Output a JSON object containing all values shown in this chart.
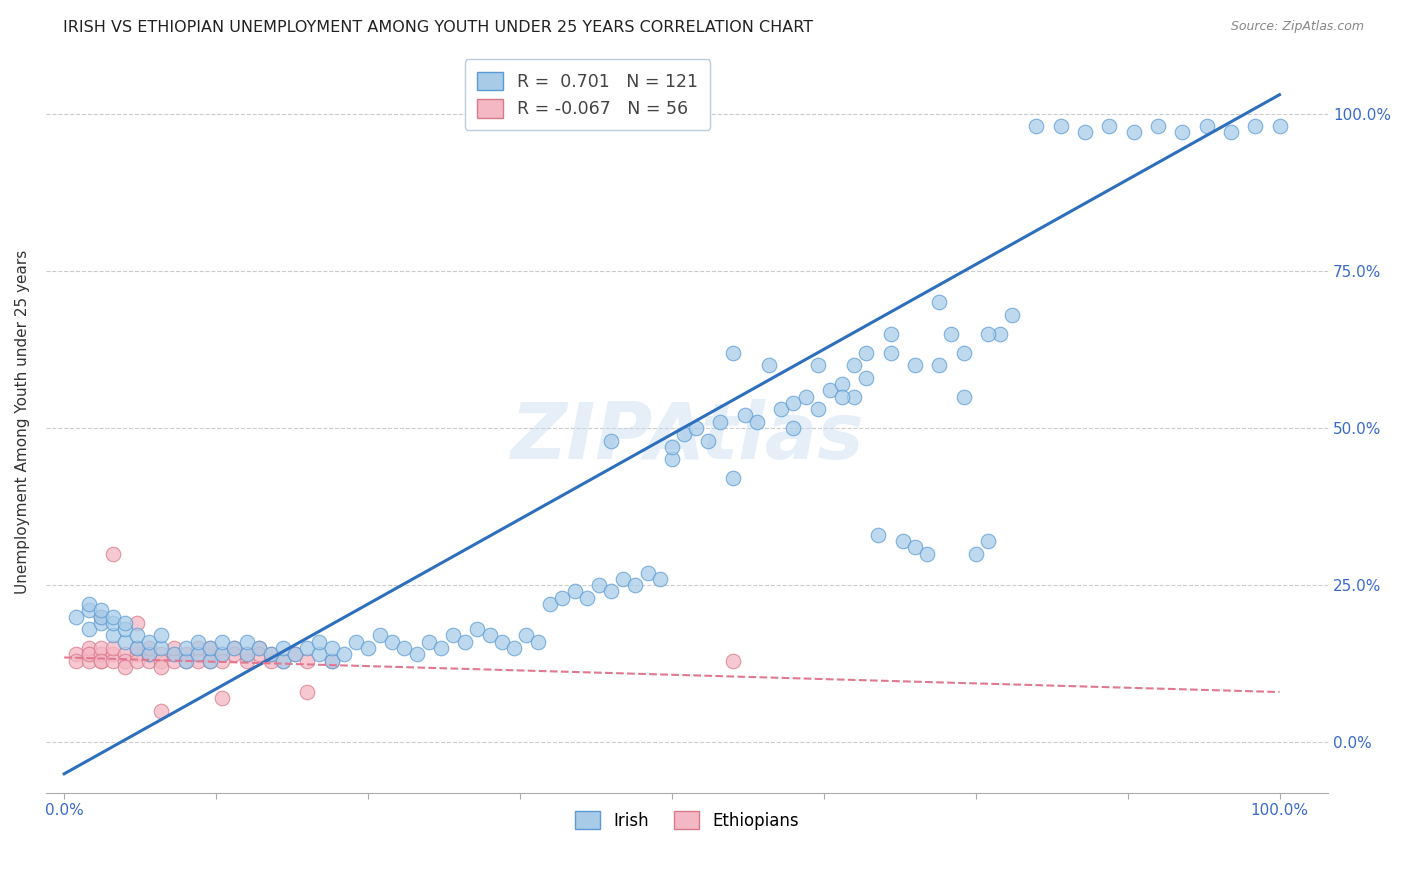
{
  "title": "IRISH VS ETHIOPIAN UNEMPLOYMENT AMONG YOUTH UNDER 25 YEARS CORRELATION CHART",
  "source": "Source: ZipAtlas.com",
  "ylabel": "Unemployment Among Youth under 25 years",
  "ytick_labels": [
    "0.0%",
    "25.0%",
    "50.0%",
    "75.0%",
    "100.0%"
  ],
  "ytick_vals": [
    0.0,
    0.25,
    0.5,
    0.75,
    1.0
  ],
  "irish_R": 0.701,
  "irish_N": 121,
  "ethiopian_R": -0.067,
  "ethiopian_N": 56,
  "irish_color": "#a8cce8",
  "irish_edge": "#5b9bd5",
  "ethiopian_color": "#f4b8c4",
  "ethiopian_edge": "#d9788a",
  "watermark": "ZIPAtlas",
  "legend_irish": "Irish",
  "legend_ethiopians": "Ethiopians",
  "irish_line_color": "#2e6fbd",
  "irish_line_slope": 1.08,
  "irish_line_intercept": -0.05,
  "eth_line_color": "#e07890",
  "eth_line_slope": -0.055,
  "eth_line_intercept": 0.135,
  "irish_scatter_x": [
    0.01,
    0.02,
    0.02,
    0.02,
    0.03,
    0.03,
    0.03,
    0.04,
    0.04,
    0.04,
    0.05,
    0.05,
    0.05,
    0.06,
    0.06,
    0.07,
    0.07,
    0.08,
    0.08,
    0.09,
    0.1,
    0.1,
    0.11,
    0.11,
    0.12,
    0.12,
    0.13,
    0.13,
    0.14,
    0.15,
    0.15,
    0.16,
    0.17,
    0.18,
    0.18,
    0.19,
    0.2,
    0.21,
    0.21,
    0.22,
    0.22,
    0.23,
    0.24,
    0.25,
    0.26,
    0.27,
    0.28,
    0.29,
    0.3,
    0.31,
    0.32,
    0.33,
    0.34,
    0.35,
    0.36,
    0.37,
    0.38,
    0.39,
    0.4,
    0.41,
    0.42,
    0.43,
    0.44,
    0.45,
    0.45,
    0.46,
    0.47,
    0.48,
    0.49,
    0.5,
    0.5,
    0.51,
    0.52,
    0.53,
    0.54,
    0.55,
    0.55,
    0.56,
    0.57,
    0.58,
    0.59,
    0.6,
    0.61,
    0.62,
    0.63,
    0.64,
    0.65,
    0.65,
    0.66,
    0.67,
    0.68,
    0.69,
    0.7,
    0.71,
    0.72,
    0.73,
    0.74,
    0.75,
    0.76,
    0.77,
    0.6,
    0.62,
    0.64,
    0.66,
    0.68,
    0.7,
    0.72,
    0.74,
    0.76,
    0.78,
    0.8,
    0.82,
    0.84,
    0.86,
    0.88,
    0.9,
    0.92,
    0.94,
    0.96,
    0.98,
    1.0
  ],
  "irish_scatter_y": [
    0.2,
    0.18,
    0.21,
    0.22,
    0.19,
    0.2,
    0.21,
    0.17,
    0.19,
    0.2,
    0.16,
    0.18,
    0.19,
    0.15,
    0.17,
    0.14,
    0.16,
    0.15,
    0.17,
    0.14,
    0.13,
    0.15,
    0.14,
    0.16,
    0.13,
    0.15,
    0.14,
    0.16,
    0.15,
    0.14,
    0.16,
    0.15,
    0.14,
    0.13,
    0.15,
    0.14,
    0.15,
    0.14,
    0.16,
    0.13,
    0.15,
    0.14,
    0.16,
    0.15,
    0.17,
    0.16,
    0.15,
    0.14,
    0.16,
    0.15,
    0.17,
    0.16,
    0.18,
    0.17,
    0.16,
    0.15,
    0.17,
    0.16,
    0.22,
    0.23,
    0.24,
    0.23,
    0.25,
    0.24,
    0.48,
    0.26,
    0.25,
    0.27,
    0.26,
    0.45,
    0.47,
    0.49,
    0.5,
    0.48,
    0.51,
    0.42,
    0.62,
    0.52,
    0.51,
    0.6,
    0.53,
    0.54,
    0.55,
    0.53,
    0.56,
    0.57,
    0.55,
    0.6,
    0.58,
    0.33,
    0.62,
    0.32,
    0.31,
    0.3,
    0.6,
    0.65,
    0.55,
    0.3,
    0.32,
    0.65,
    0.5,
    0.6,
    0.55,
    0.62,
    0.65,
    0.6,
    0.7,
    0.62,
    0.65,
    0.68,
    0.98,
    0.98,
    0.97,
    0.98,
    0.97,
    0.98,
    0.97,
    0.98,
    0.97,
    0.98,
    0.98
  ],
  "ethiopian_scatter_x": [
    0.01,
    0.01,
    0.02,
    0.02,
    0.02,
    0.02,
    0.03,
    0.03,
    0.03,
    0.03,
    0.04,
    0.04,
    0.04,
    0.05,
    0.05,
    0.05,
    0.06,
    0.06,
    0.06,
    0.07,
    0.07,
    0.07,
    0.08,
    0.08,
    0.08,
    0.09,
    0.09,
    0.09,
    0.1,
    0.1,
    0.11,
    0.11,
    0.12,
    0.12,
    0.12,
    0.13,
    0.13,
    0.14,
    0.14,
    0.15,
    0.15,
    0.16,
    0.16,
    0.17,
    0.17,
    0.18,
    0.19,
    0.2,
    0.22,
    0.03,
    0.55,
    0.04,
    0.06,
    0.08,
    0.13,
    0.2
  ],
  "ethiopian_scatter_y": [
    0.14,
    0.13,
    0.14,
    0.13,
    0.15,
    0.14,
    0.13,
    0.14,
    0.15,
    0.13,
    0.14,
    0.13,
    0.15,
    0.14,
    0.13,
    0.12,
    0.14,
    0.15,
    0.13,
    0.13,
    0.14,
    0.15,
    0.14,
    0.13,
    0.12,
    0.14,
    0.13,
    0.15,
    0.13,
    0.14,
    0.15,
    0.13,
    0.14,
    0.13,
    0.15,
    0.14,
    0.13,
    0.15,
    0.14,
    0.13,
    0.14,
    0.15,
    0.14,
    0.13,
    0.14,
    0.13,
    0.14,
    0.13,
    0.13,
    0.2,
    0.13,
    0.3,
    0.19,
    0.05,
    0.07,
    0.08
  ]
}
